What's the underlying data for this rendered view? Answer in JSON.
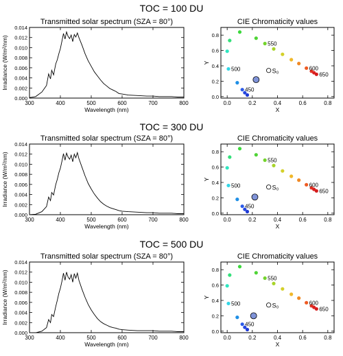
{
  "figure": {
    "panel_rows": [
      {
        "title": "TOC = 100 DU"
      },
      {
        "title": "TOC = 300 DU"
      },
      {
        "title": "TOC = 500 DU"
      }
    ]
  },
  "chart_data": [
    {
      "type": "line",
      "row": 0,
      "toc_du": 100,
      "title": "Transmitted solar spectrum (SZA = 80°)",
      "xlabel": "Wavelength (nm)",
      "ylabel": "Irradiance (W/m²/nm)",
      "xlim": [
        300,
        800
      ],
      "ylim": [
        0,
        0.014
      ],
      "xticks": [
        300,
        400,
        500,
        600,
        700,
        800
      ],
      "yticks": [
        0.0,
        0.002,
        0.004,
        0.006,
        0.008,
        0.01,
        0.012,
        0.014
      ],
      "ytick_labels": [
        "0.000",
        "0.002",
        "0.004",
        "0.006",
        "0.008",
        "0.010",
        "0.012",
        "0.014"
      ],
      "series": [
        {
          "x": [
            300,
            320,
            340,
            355,
            362,
            368,
            372,
            378,
            385,
            390,
            395,
            400,
            405,
            410,
            415,
            420,
            425,
            430,
            435,
            440,
            445,
            450,
            455,
            460,
            470,
            480,
            490,
            500,
            510,
            520,
            530,
            540,
            550,
            560,
            570,
            580,
            590,
            600,
            620,
            650,
            680,
            700,
            720,
            740,
            760,
            780,
            800
          ],
          "y": [
            0.0001,
            0.0003,
            0.0012,
            0.0025,
            0.0048,
            0.0038,
            0.0055,
            0.0046,
            0.0068,
            0.0076,
            0.0088,
            0.0098,
            0.0113,
            0.0128,
            0.0117,
            0.0131,
            0.0122,
            0.0118,
            0.0125,
            0.0112,
            0.0126,
            0.0121,
            0.0129,
            0.012,
            0.0105,
            0.0088,
            0.0074,
            0.0063,
            0.0052,
            0.0044,
            0.0036,
            0.0029,
            0.0024,
            0.0019,
            0.0016,
            0.0013,
            0.0009,
            0.0008,
            0.0006,
            0.0005,
            0.0004,
            0.0004,
            0.0003,
            0.0003,
            0.0003,
            0.0002,
            0.0002
          ]
        }
      ]
    },
    {
      "type": "scatter",
      "row": 0,
      "toc_du": 100,
      "title": "CIE Chromaticity values",
      "xlabel": "X",
      "ylabel": "Y",
      "xlim": [
        -0.05,
        0.85
      ],
      "ylim": [
        -0.02,
        0.9
      ],
      "xticks": [
        0.0,
        0.2,
        0.4,
        0.6,
        0.8
      ],
      "yticks": [
        0.0,
        0.2,
        0.4,
        0.6,
        0.8
      ],
      "xtick_labels": [
        "0.0",
        "0.2",
        "0.4",
        "0.6",
        "0.8"
      ],
      "ytick_labels": [
        "0.0",
        "0.2",
        "0.4",
        "0.6",
        "0.8"
      ],
      "wavelength_labels": [
        {
          "text": "450",
          "point": 2
        },
        {
          "text": "500",
          "point": 4
        },
        {
          "text": "550",
          "point": 9
        },
        {
          "text": "600",
          "point": 14
        },
        {
          "text": "650",
          "point": 17
        }
      ],
      "source_label": "S₀",
      "points": [
        {
          "x": 0.16,
          "y": 0.02,
          "color": "#1f3bd6"
        },
        {
          "x": 0.14,
          "y": 0.05,
          "color": "#2446e0"
        },
        {
          "x": 0.12,
          "y": 0.09,
          "color": "#2a5ae8"
        },
        {
          "x": 0.08,
          "y": 0.18,
          "color": "#1f8fe6"
        },
        {
          "x": 0.01,
          "y": 0.36,
          "color": "#33d6e6"
        },
        {
          "x": 0.0,
          "y": 0.59,
          "color": "#2ee6c0"
        },
        {
          "x": 0.02,
          "y": 0.73,
          "color": "#33e07a"
        },
        {
          "x": 0.1,
          "y": 0.84,
          "color": "#3dd83d"
        },
        {
          "x": 0.23,
          "y": 0.76,
          "color": "#4fd436"
        },
        {
          "x": 0.3,
          "y": 0.69,
          "color": "#74d42e"
        },
        {
          "x": 0.37,
          "y": 0.62,
          "color": "#a8d42a"
        },
        {
          "x": 0.44,
          "y": 0.55,
          "color": "#d4d02a"
        },
        {
          "x": 0.51,
          "y": 0.48,
          "color": "#f0b82a"
        },
        {
          "x": 0.57,
          "y": 0.43,
          "color": "#f08a26"
        },
        {
          "x": 0.63,
          "y": 0.37,
          "color": "#ee5a22"
        },
        {
          "x": 0.67,
          "y": 0.33,
          "color": "#e43222"
        },
        {
          "x": 0.69,
          "y": 0.31,
          "color": "#dc2020"
        },
        {
          "x": 0.71,
          "y": 0.29,
          "color": "#d41c1c"
        }
      ],
      "source_point": {
        "x": 0.33,
        "y": 0.34
      },
      "current_point": {
        "x": 0.23,
        "y": 0.22
      }
    },
    {
      "type": "line",
      "row": 1,
      "toc_du": 300,
      "title": "Transmitted solar spectrum (SZA = 80°)",
      "xlabel": "Wavelength (nm)",
      "ylabel": "Irradiance (W/m²/nm)",
      "xlim": [
        300,
        800
      ],
      "ylim": [
        0,
        0.014
      ],
      "xticks": [
        300,
        400,
        500,
        600,
        700,
        800
      ],
      "yticks": [
        0.0,
        0.002,
        0.004,
        0.006,
        0.008,
        0.01,
        0.012,
        0.014
      ],
      "ytick_labels": [
        "0.000",
        "0.002",
        "0.004",
        "0.006",
        "0.008",
        "0.010",
        "0.012",
        "0.014"
      ],
      "series": [
        {
          "x": [
            300,
            320,
            340,
            355,
            362,
            368,
            372,
            378,
            385,
            390,
            395,
            400,
            405,
            410,
            415,
            420,
            425,
            430,
            435,
            440,
            445,
            450,
            455,
            460,
            470,
            480,
            490,
            500,
            510,
            520,
            530,
            540,
            550,
            560,
            570,
            580,
            590,
            600,
            620,
            650,
            680,
            700,
            720,
            740,
            760,
            780,
            800
          ],
          "y": [
            0.0,
            0.0001,
            0.0006,
            0.0016,
            0.0035,
            0.0028,
            0.0044,
            0.0039,
            0.006,
            0.007,
            0.0083,
            0.0092,
            0.0106,
            0.0121,
            0.0108,
            0.0122,
            0.0114,
            0.011,
            0.0118,
            0.0105,
            0.012,
            0.0113,
            0.0123,
            0.0111,
            0.0094,
            0.0077,
            0.0062,
            0.0051,
            0.0041,
            0.0033,
            0.0026,
            0.0021,
            0.0017,
            0.0014,
            0.0012,
            0.001,
            0.0008,
            0.0007,
            0.0006,
            0.0005,
            0.0004,
            0.0004,
            0.0003,
            0.0003,
            0.0003,
            0.0002,
            0.0002
          ]
        }
      ]
    },
    {
      "type": "scatter",
      "row": 1,
      "toc_du": 300,
      "title": "CIE Chromaticity values",
      "xlabel": "X",
      "ylabel": "Y",
      "xlim": [
        -0.05,
        0.85
      ],
      "ylim": [
        -0.02,
        0.9
      ],
      "xticks": [
        0.0,
        0.2,
        0.4,
        0.6,
        0.8
      ],
      "yticks": [
        0.0,
        0.2,
        0.4,
        0.6,
        0.8
      ],
      "xtick_labels": [
        "0.0",
        "0.2",
        "0.4",
        "0.6",
        "0.8"
      ],
      "ytick_labels": [
        "0.0",
        "0.2",
        "0.4",
        "0.6",
        "0.8"
      ],
      "wavelength_labels": [
        {
          "text": "450",
          "point": 2
        },
        {
          "text": "500",
          "point": 4
        },
        {
          "text": "550",
          "point": 9
        },
        {
          "text": "600",
          "point": 14
        },
        {
          "text": "650",
          "point": 17
        }
      ],
      "source_label": "S₀",
      "points": [
        {
          "x": 0.16,
          "y": 0.02,
          "color": "#1f3bd6"
        },
        {
          "x": 0.14,
          "y": 0.05,
          "color": "#2446e0"
        },
        {
          "x": 0.12,
          "y": 0.09,
          "color": "#2a5ae8"
        },
        {
          "x": 0.08,
          "y": 0.18,
          "color": "#1f8fe6"
        },
        {
          "x": 0.01,
          "y": 0.36,
          "color": "#33d6e6"
        },
        {
          "x": 0.0,
          "y": 0.59,
          "color": "#2ee6c0"
        },
        {
          "x": 0.02,
          "y": 0.73,
          "color": "#33e07a"
        },
        {
          "x": 0.1,
          "y": 0.84,
          "color": "#3dd83d"
        },
        {
          "x": 0.23,
          "y": 0.76,
          "color": "#4fd436"
        },
        {
          "x": 0.3,
          "y": 0.69,
          "color": "#74d42e"
        },
        {
          "x": 0.37,
          "y": 0.62,
          "color": "#a8d42a"
        },
        {
          "x": 0.44,
          "y": 0.55,
          "color": "#d4d02a"
        },
        {
          "x": 0.51,
          "y": 0.48,
          "color": "#f0b82a"
        },
        {
          "x": 0.57,
          "y": 0.43,
          "color": "#f08a26"
        },
        {
          "x": 0.63,
          "y": 0.37,
          "color": "#ee5a22"
        },
        {
          "x": 0.67,
          "y": 0.33,
          "color": "#e43222"
        },
        {
          "x": 0.69,
          "y": 0.31,
          "color": "#dc2020"
        },
        {
          "x": 0.71,
          "y": 0.29,
          "color": "#d41c1c"
        }
      ],
      "source_point": {
        "x": 0.33,
        "y": 0.34
      },
      "current_point": {
        "x": 0.22,
        "y": 0.21
      }
    },
    {
      "type": "line",
      "row": 2,
      "toc_du": 500,
      "title": "Transmitted solar spectrum (SZA = 80°)",
      "xlabel": "Wavelength (nm)",
      "ylabel": "Irradiance (W/m²/nm)",
      "xlim": [
        300,
        800
      ],
      "ylim": [
        0,
        0.014
      ],
      "xticks": [
        300,
        400,
        500,
        600,
        700,
        800
      ],
      "yticks": [
        0.0,
        0.002,
        0.004,
        0.006,
        0.008,
        0.01,
        0.012,
        0.014
      ],
      "ytick_labels": [
        "0.000",
        "0.002",
        "0.004",
        "0.006",
        "0.008",
        "0.010",
        "0.012",
        "0.014"
      ],
      "series": [
        {
          "x": [
            300,
            320,
            340,
            355,
            362,
            368,
            372,
            378,
            385,
            390,
            395,
            400,
            405,
            410,
            415,
            420,
            425,
            430,
            435,
            440,
            445,
            450,
            455,
            460,
            470,
            480,
            490,
            500,
            510,
            520,
            530,
            540,
            550,
            560,
            570,
            580,
            590,
            600,
            620,
            650,
            680,
            700,
            720,
            740,
            760,
            780,
            800
          ],
          "y": [
            0.0,
            0.0,
            0.0003,
            0.001,
            0.0026,
            0.002,
            0.0036,
            0.0032,
            0.0052,
            0.0064,
            0.0078,
            0.0088,
            0.0102,
            0.0118,
            0.0104,
            0.012,
            0.011,
            0.0106,
            0.0115,
            0.01,
            0.0117,
            0.0108,
            0.0118,
            0.0104,
            0.0086,
            0.007,
            0.0056,
            0.0045,
            0.0036,
            0.0028,
            0.0022,
            0.0018,
            0.0015,
            0.0012,
            0.001,
            0.0009,
            0.0007,
            0.0006,
            0.0005,
            0.0004,
            0.0004,
            0.0004,
            0.0003,
            0.0003,
            0.0003,
            0.0002,
            0.0002
          ]
        }
      ]
    },
    {
      "type": "scatter",
      "row": 2,
      "toc_du": 500,
      "title": "CIE Chromaticity values",
      "xlabel": "X",
      "ylabel": "Y",
      "xlim": [
        -0.05,
        0.85
      ],
      "ylim": [
        -0.02,
        0.9
      ],
      "xticks": [
        0.0,
        0.2,
        0.4,
        0.6,
        0.8
      ],
      "yticks": [
        0.0,
        0.2,
        0.4,
        0.6,
        0.8
      ],
      "xtick_labels": [
        "0.0",
        "0.2",
        "0.4",
        "0.6",
        "0.8"
      ],
      "ytick_labels": [
        "0.0",
        "0.2",
        "0.4",
        "0.6",
        "0.8"
      ],
      "wavelength_labels": [
        {
          "text": "450",
          "point": 2
        },
        {
          "text": "500",
          "point": 4
        },
        {
          "text": "550",
          "point": 9
        },
        {
          "text": "600",
          "point": 14
        },
        {
          "text": "650",
          "point": 17
        }
      ],
      "source_label": "S₀",
      "points": [
        {
          "x": 0.16,
          "y": 0.02,
          "color": "#1f3bd6"
        },
        {
          "x": 0.14,
          "y": 0.05,
          "color": "#2446e0"
        },
        {
          "x": 0.12,
          "y": 0.09,
          "color": "#2a5ae8"
        },
        {
          "x": 0.08,
          "y": 0.18,
          "color": "#1f8fe6"
        },
        {
          "x": 0.01,
          "y": 0.36,
          "color": "#33d6e6"
        },
        {
          "x": 0.0,
          "y": 0.59,
          "color": "#2ee6c0"
        },
        {
          "x": 0.02,
          "y": 0.73,
          "color": "#33e07a"
        },
        {
          "x": 0.1,
          "y": 0.84,
          "color": "#3dd83d"
        },
        {
          "x": 0.23,
          "y": 0.76,
          "color": "#4fd436"
        },
        {
          "x": 0.3,
          "y": 0.69,
          "color": "#74d42e"
        },
        {
          "x": 0.37,
          "y": 0.62,
          "color": "#a8d42a"
        },
        {
          "x": 0.44,
          "y": 0.55,
          "color": "#d4d02a"
        },
        {
          "x": 0.51,
          "y": 0.48,
          "color": "#f0b82a"
        },
        {
          "x": 0.57,
          "y": 0.43,
          "color": "#f08a26"
        },
        {
          "x": 0.63,
          "y": 0.37,
          "color": "#ee5a22"
        },
        {
          "x": 0.67,
          "y": 0.33,
          "color": "#e43222"
        },
        {
          "x": 0.69,
          "y": 0.31,
          "color": "#dc2020"
        },
        {
          "x": 0.71,
          "y": 0.29,
          "color": "#d41c1c"
        }
      ],
      "source_point": {
        "x": 0.33,
        "y": 0.34
      },
      "current_point": {
        "x": 0.21,
        "y": 0.2
      }
    }
  ]
}
